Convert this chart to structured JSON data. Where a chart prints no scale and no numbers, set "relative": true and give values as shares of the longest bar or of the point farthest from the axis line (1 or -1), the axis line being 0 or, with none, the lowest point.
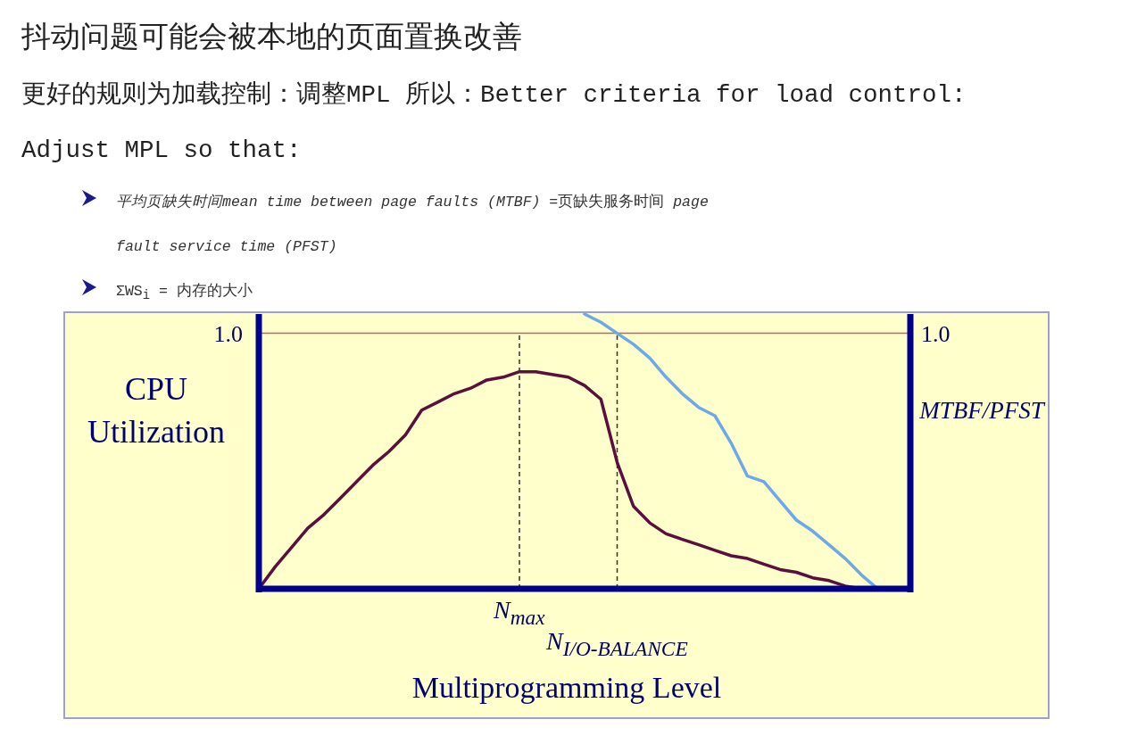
{
  "chart_data": {
    "type": "line",
    "title": "抖动问题可能会被本地的页面置换改善",
    "subtitle": "更好的规则为加载控制：调整MPL 所以：Better criteria for load control: Adjust MPL so that:",
    "annotations": [
      "*平均页缺失时间mean time between page faults (MTBF)* =页缺失服务时间 *page fault service time (PFST)*",
      "ΣWS$_{i}$ = 内存的大小",
      "1.0",
      "1.0"
    ],
    "ylabel": "CPU Utilization",
    "y2label": "MTBF/PFST",
    "xlabel": "Multiprogramming Level",
    "relative": true,
    "grid": false,
    "marker": "none",
    "line_style": "solid",
    "categories": [
      null,
      null,
      null,
      null,
      null,
      null,
      null,
      null,
      null,
      null,
      null,
      null,
      null,
      null,
      null,
      null,
      "N$_{max}$",
      null,
      null,
      null,
      null,
      null,
      "N$_{I/O-BALANCE}$",
      null,
      null,
      null,
      null,
      null,
      null,
      null,
      null,
      null,
      null,
      null,
      null,
      null,
      null,
      null,
      null,
      null,
      null
    ],
    "ref_lines": [
      {
        "axis": "y",
        "value": 0.93,
        "color": "#c06070",
        "line_style": "solid"
      },
      {
        "axis": "x",
        "value": "N$_{max}$",
        "color": "#333333",
        "line_style": "dashed"
      },
      {
        "axis": "x",
        "value": "N$_{I/O-BALANCE}$",
        "color": "#333333",
        "line_style": "dashed"
      }
    ],
    "series": [
      {
        "color": "#5a0f3c",
        "values": [
          0,
          0.08,
          0.15,
          0.22,
          0.27,
          0.33,
          0.39,
          0.45,
          0.5,
          0.56,
          0.65,
          0.68,
          0.71,
          0.73,
          0.76,
          0.77,
          0.79,
          0.79,
          0.78,
          0.77,
          0.74,
          0.69,
          0.46,
          0.3,
          0.24,
          0.2,
          0.18,
          0.16,
          0.14,
          0.12,
          0.11,
          0.09,
          0.07,
          0.06,
          0.04,
          0.03,
          0.01,
          0,
          null,
          null,
          null
        ]
      },
      {
        "color": "#6fa8e8",
        "values": [
          null,
          null,
          null,
          null,
          null,
          null,
          null,
          null,
          null,
          null,
          null,
          null,
          null,
          null,
          null,
          null,
          null,
          null,
          null,
          null,
          1,
          0.97,
          0.93,
          0.89,
          0.84,
          0.77,
          0.71,
          0.66,
          0.63,
          0.53,
          0.41,
          0.39,
          0.32,
          0.25,
          0.21,
          0.16,
          0.11,
          0.05,
          0,
          null,
          null
        ]
      }
    ]
  }
}
